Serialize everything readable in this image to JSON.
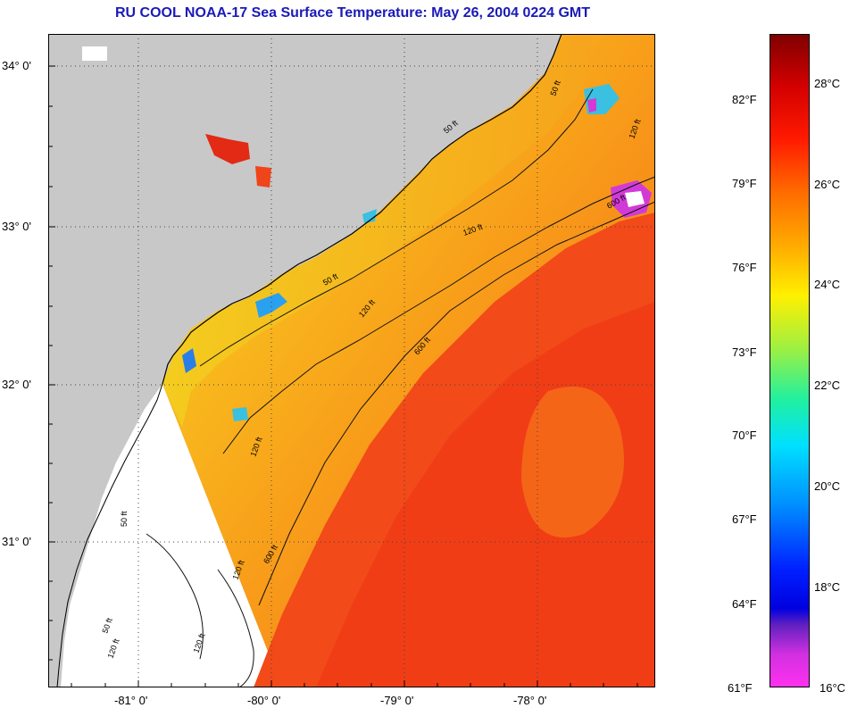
{
  "title": "RU COOL  NOAA-17  Sea Surface Temperature:  May 26, 2004 0224 GMT",
  "latitude_labels": [
    "34° 0'",
    "33° 0'",
    "32° 0'",
    "31° 0'"
  ],
  "longitude_labels": [
    "-81° 0'",
    "-80° 0'",
    "-79° 0'",
    "-78° 0'"
  ],
  "isobath_labels": [
    "50 ft",
    "120 ft",
    "600 ft",
    "50 ft",
    "120 ft",
    "50 ft",
    "120 ft",
    "600 ft",
    "120 ft",
    "600 ft",
    "50 ft",
    "120 ft",
    "120 ft",
    "50 ft",
    "120 ft"
  ],
  "colorbar": {
    "fahrenheit": [
      "82°F",
      "79°F",
      "76°F",
      "73°F",
      "70°F",
      "67°F",
      "64°F",
      "61°F"
    ],
    "celsius": [
      "28°C",
      "26°C",
      "24°C",
      "22°C",
      "20°C",
      "18°C",
      "16°C"
    ]
  },
  "colors": {
    "land": "#c8c8c8",
    "no_data": "#ffffff",
    "warm_offshore": "#f43a18",
    "shelf_orange": "#f88a18",
    "nearshore_yellow": "#f4cc1c",
    "title_blue": "#1a1ab8"
  }
}
